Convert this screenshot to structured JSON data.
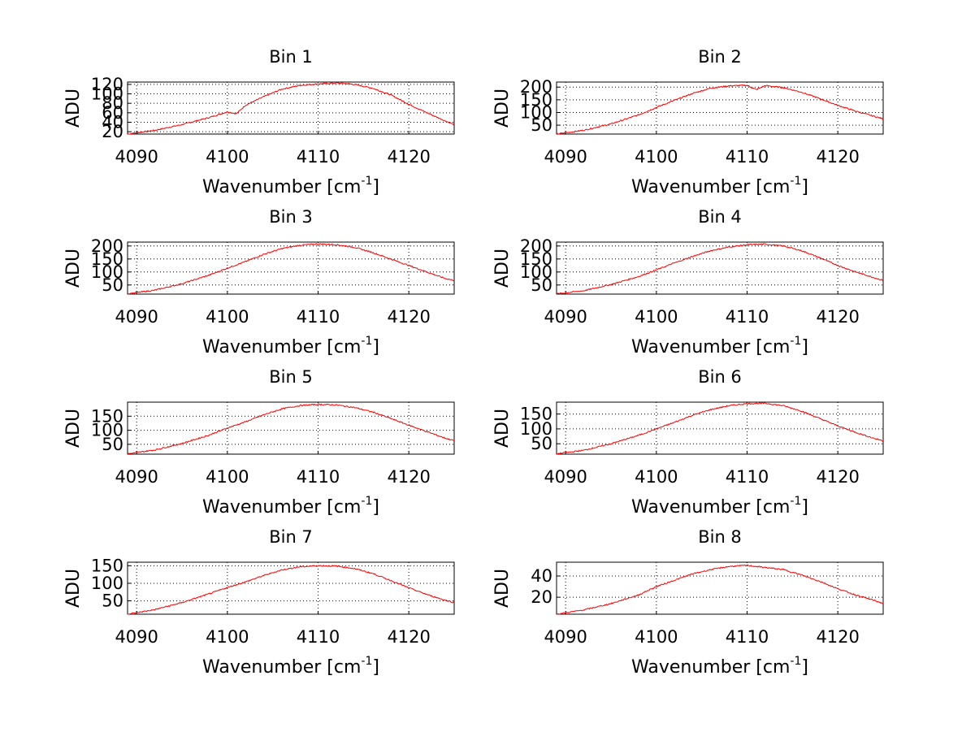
{
  "figure": {
    "background": "#ffffff",
    "line_color": "#ff0000"
  },
  "chart_data": [
    {
      "type": "line",
      "title": "Bin 1",
      "xlabel": "Wavenumber [cm",
      "xlabel_sup": "-1",
      "xlabel_close": "]",
      "ylabel": "ADU",
      "xlim": [
        4089,
        4125
      ],
      "ylim": [
        15,
        125
      ],
      "xticks": [
        4090,
        4100,
        4110,
        4120
      ],
      "xtick_labels": [
        "4090",
        "4100",
        "4110",
        "4120"
      ],
      "yticks": [
        20,
        40,
        60,
        80,
        100,
        120
      ],
      "ytick_labels": [
        "20",
        "40",
        "60",
        "80",
        "100",
        "120"
      ],
      "grid": true,
      "series": [
        {
          "x": [
            4089,
            4092,
            4095,
            4098,
            4100,
            4101,
            4102,
            4104,
            4106,
            4108,
            4110,
            4112,
            4113,
            4114,
            4116,
            4118,
            4120,
            4122,
            4124,
            4125
          ],
          "y": [
            15,
            23,
            35,
            50,
            62,
            58,
            76,
            94,
            110,
            118,
            121,
            123,
            122,
            120,
            112,
            98,
            78,
            60,
            43,
            35
          ]
        }
      ]
    },
    {
      "type": "line",
      "title": "Bin 2",
      "xlabel": "Wavenumber [cm",
      "xlabel_sup": "-1",
      "xlabel_close": "]",
      "ylabel": "ADU",
      "xlim": [
        4089,
        4125
      ],
      "ylim": [
        15,
        220
      ],
      "xticks": [
        4090,
        4100,
        4110,
        4120
      ],
      "xtick_labels": [
        "4090",
        "4100",
        "4110",
        "4120"
      ],
      "yticks": [
        50,
        100,
        150,
        200
      ],
      "ytick_labels": [
        "50",
        "100",
        "150",
        "200"
      ],
      "grid": true,
      "series": [
        {
          "x": [
            4089,
            4092,
            4095,
            4098,
            4100,
            4102,
            4104,
            4106,
            4108,
            4110,
            4111,
            4112,
            4114,
            4116,
            4118,
            4120,
            4122,
            4124,
            4125
          ],
          "y": [
            15,
            30,
            55,
            90,
            120,
            148,
            175,
            196,
            205,
            207,
            190,
            206,
            198,
            180,
            155,
            128,
            105,
            85,
            75
          ]
        }
      ]
    },
    {
      "type": "line",
      "title": "Bin 3",
      "xlabel": "Wavenumber [cm",
      "xlabel_sup": "-1",
      "xlabel_close": "]",
      "ylabel": "ADU",
      "xlim": [
        4089,
        4125
      ],
      "ylim": [
        15,
        215
      ],
      "xticks": [
        4090,
        4100,
        4110,
        4120
      ],
      "xtick_labels": [
        "4090",
        "4100",
        "4110",
        "4120"
      ],
      "yticks": [
        50,
        100,
        150,
        200
      ],
      "ytick_labels": [
        "50",
        "100",
        "150",
        "200"
      ],
      "grid": true,
      "series": [
        {
          "x": [
            4089,
            4092,
            4095,
            4098,
            4100,
            4102,
            4104,
            4106,
            4108,
            4110,
            4112,
            4114,
            4116,
            4118,
            4120,
            4122,
            4124,
            4125
          ],
          "y": [
            16,
            30,
            55,
            88,
            115,
            140,
            168,
            190,
            203,
            208,
            205,
            195,
            175,
            150,
            125,
            100,
            75,
            68
          ]
        }
      ]
    },
    {
      "type": "line",
      "title": "Bin 4",
      "xlabel": "Wavenumber [cm",
      "xlabel_sup": "-1",
      "xlabel_close": "]",
      "ylabel": "ADU",
      "xlim": [
        4089,
        4125
      ],
      "ylim": [
        15,
        215
      ],
      "xticks": [
        4090,
        4100,
        4110,
        4120
      ],
      "xtick_labels": [
        "4090",
        "4100",
        "4110",
        "4120"
      ],
      "yticks": [
        50,
        100,
        150,
        200
      ],
      "ytick_labels": [
        "50",
        "100",
        "150",
        "200"
      ],
      "grid": true,
      "series": [
        {
          "x": [
            4089,
            4092,
            4095,
            4098,
            4100,
            4102,
            4104,
            4106,
            4108,
            4110,
            4112,
            4114,
            4116,
            4118,
            4120,
            4122,
            4124,
            4125
          ],
          "y": [
            16,
            28,
            52,
            82,
            108,
            135,
            160,
            182,
            196,
            205,
            207,
            200,
            182,
            155,
            125,
            100,
            78,
            68
          ]
        }
      ]
    },
    {
      "type": "line",
      "title": "Bin 5",
      "xlabel": "Wavenumber [cm",
      "xlabel_sup": "-1",
      "xlabel_close": "]",
      "ylabel": "ADU",
      "xlim": [
        4089,
        4125
      ],
      "ylim": [
        15,
        200
      ],
      "xticks": [
        4090,
        4100,
        4110,
        4120
      ],
      "xtick_labels": [
        "4090",
        "4100",
        "4110",
        "4120"
      ],
      "yticks": [
        50,
        100,
        150
      ],
      "ytick_labels": [
        "50",
        "100",
        "150"
      ],
      "grid": true,
      "series": [
        {
          "x": [
            4089,
            4092,
            4095,
            4098,
            4100,
            4102,
            4104,
            4106,
            4108,
            4110,
            4112,
            4114,
            4116,
            4118,
            4120,
            4122,
            4124,
            4125
          ],
          "y": [
            16,
            30,
            53,
            83,
            108,
            130,
            155,
            176,
            188,
            192,
            190,
            181,
            165,
            142,
            118,
            95,
            72,
            63
          ]
        }
      ]
    },
    {
      "type": "line",
      "title": "Bin 6",
      "xlabel": "Wavenumber [cm",
      "xlabel_sup": "-1",
      "xlabel_close": "]",
      "ylabel": "ADU",
      "xlim": [
        4089,
        4125
      ],
      "ylim": [
        15,
        190
      ],
      "xticks": [
        4090,
        4100,
        4110,
        4120
      ],
      "xtick_labels": [
        "4090",
        "4100",
        "4110",
        "4120"
      ],
      "yticks": [
        50,
        100,
        150
      ],
      "ytick_labels": [
        "50",
        "100",
        "150"
      ],
      "grid": true,
      "series": [
        {
          "x": [
            4089,
            4092,
            4095,
            4098,
            4100,
            4102,
            4104,
            4106,
            4108,
            4110,
            4112,
            4114,
            4116,
            4118,
            4120,
            4122,
            4124,
            4125
          ],
          "y": [
            16,
            28,
            50,
            78,
            100,
            122,
            146,
            165,
            178,
            185,
            186,
            178,
            160,
            135,
            110,
            88,
            68,
            60
          ]
        }
      ]
    },
    {
      "type": "line",
      "title": "Bin 7",
      "xlabel": "Wavenumber [cm",
      "xlabel_sup": "-1",
      "xlabel_close": "]",
      "ylabel": "ADU",
      "xlim": [
        4089,
        4125
      ],
      "ylim": [
        12,
        160
      ],
      "xticks": [
        4090,
        4100,
        4110,
        4120
      ],
      "xtick_labels": [
        "4090",
        "4100",
        "4110",
        "4120"
      ],
      "yticks": [
        50,
        100,
        150
      ],
      "ytick_labels": [
        "50",
        "100",
        "150"
      ],
      "grid": true,
      "series": [
        {
          "x": [
            4089,
            4092,
            4095,
            4098,
            4100,
            4102,
            4104,
            4106,
            4108,
            4110,
            4112,
            4114,
            4116,
            4118,
            4120,
            4122,
            4124,
            4125
          ],
          "y": [
            12,
            25,
            45,
            70,
            88,
            104,
            122,
            138,
            147,
            150,
            149,
            142,
            128,
            108,
            87,
            68,
            52,
            45
          ]
        }
      ]
    },
    {
      "type": "line",
      "title": "Bin 8",
      "xlabel": "Wavenumber [cm",
      "xlabel_sup": "-1",
      "xlabel_close": "]",
      "ylabel": "ADU",
      "xlim": [
        4089,
        4125
      ],
      "ylim": [
        4,
        53
      ],
      "xticks": [
        4090,
        4100,
        4110,
        4120
      ],
      "xtick_labels": [
        "4090",
        "4100",
        "4110",
        "4120"
      ],
      "yticks": [
        20,
        40
      ],
      "ytick_labels": [
        "20",
        "40"
      ],
      "grid": true,
      "series": [
        {
          "x": [
            4089,
            4092,
            4095,
            4098,
            4100,
            4102,
            4104,
            4106,
            4108,
            4110,
            4112,
            4114,
            4116,
            4118,
            4120,
            4122,
            4124,
            4125
          ],
          "y": [
            4,
            8,
            14,
            22,
            30,
            36,
            42,
            46,
            49,
            50,
            48,
            46,
            41,
            35,
            28,
            22,
            17,
            14
          ]
        }
      ]
    }
  ]
}
